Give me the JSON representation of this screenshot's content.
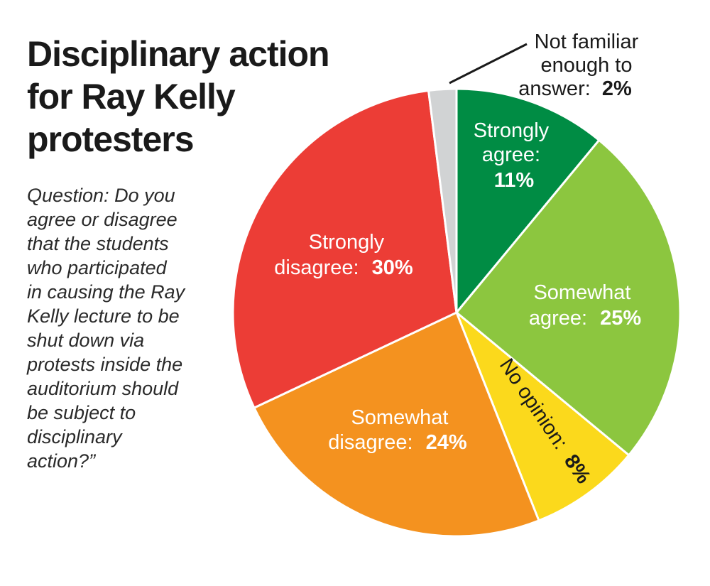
{
  "title_lines": [
    "Disciplinary action",
    "for Ray Kelly",
    "protesters"
  ],
  "question_lines": [
    "Question: Do you",
    "agree or disagree",
    "that the students",
    "who participated",
    "in causing the Ray",
    "Kelly lecture to be",
    "shut down via",
    "protests inside the",
    "auditorium should",
    "be subject to",
    "disciplinary",
    "action?”"
  ],
  "chart_data": {
    "type": "pie",
    "title": "Disciplinary action for Ray Kelly protesters",
    "slices": [
      {
        "label": "Strongly agree",
        "value": 11,
        "display": "11%",
        "color": "#008c44"
      },
      {
        "label": "Somewhat agree",
        "value": 25,
        "display": "25%",
        "color": "#8cc63f"
      },
      {
        "label": "No opinion",
        "value": 8,
        "display": "8%",
        "color": "#fbd91c"
      },
      {
        "label": "Somewhat disagree",
        "value": 24,
        "display": "24%",
        "color": "#f4921f"
      },
      {
        "label": "Strongly disagree",
        "value": 30,
        "display": "30%",
        "color": "#ec3d36"
      },
      {
        "label": "Not familiar enough to answer",
        "value": 2,
        "display": "2%",
        "color": "#d1d3d4"
      }
    ]
  },
  "labels": {
    "strongly_agree": {
      "line1": "Strongly",
      "line2": "agree:",
      "pct": "11%"
    },
    "somewhat_agree": {
      "line1": "Somewhat",
      "line2": "agree:",
      "pct": "25%"
    },
    "no_opinion": {
      "text": "No opinion:",
      "pct": "8%"
    },
    "somewhat_disagree": {
      "line1": "Somewhat",
      "line2": "disagree:",
      "pct": "24%"
    },
    "strongly_disagree": {
      "line1": "Strongly",
      "line2": "disagree:",
      "pct": "30%"
    },
    "not_familiar": {
      "line1": "Not familiar",
      "line2": "enough to",
      "line3": "answer:",
      "pct": "2%"
    }
  }
}
